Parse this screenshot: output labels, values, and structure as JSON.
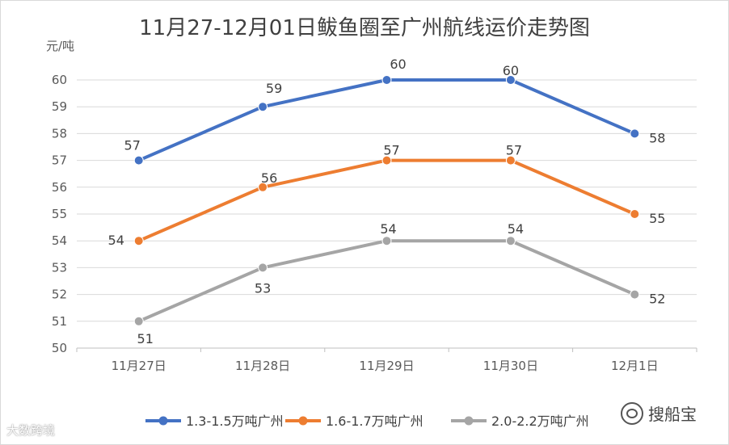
{
  "chart_data": {
    "type": "line",
    "title": "11月27-12月01日鲅鱼圈至广州航线运价走势图",
    "ylabel": "元/吨",
    "xlabel": "",
    "categories": [
      "11月27日",
      "11月28日",
      "11月29日",
      "11月30日",
      "12月1日"
    ],
    "ylim": [
      50,
      60
    ],
    "yticks": [
      50,
      51,
      52,
      53,
      54,
      55,
      56,
      57,
      58,
      59,
      60
    ],
    "grid": "horizontal",
    "legend_position": "bottom",
    "series": [
      {
        "name": "1.3-1.5万吨广州",
        "color": "#4472c4",
        "values": [
          57,
          59,
          60,
          60,
          58
        ]
      },
      {
        "name": "1.6-1.7万吨广州",
        "color": "#ed7d31",
        "values": [
          54,
          56,
          57,
          57,
          55
        ]
      },
      {
        "name": "2.0-2.2万吨广州",
        "color": "#a5a5a5",
        "values": [
          51,
          53,
          54,
          54,
          52
        ]
      }
    ]
  },
  "watermarks": {
    "left": "大数跨境",
    "right": "搜船宝"
  }
}
